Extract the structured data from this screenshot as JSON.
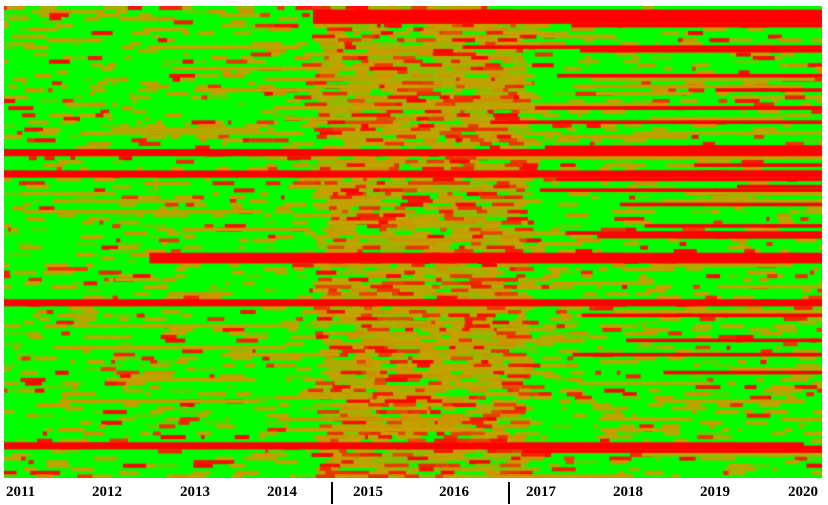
{
  "chart_data": {
    "type": "heatmap",
    "title": "",
    "xlabel": "",
    "ylabel": "",
    "x_tick_labels": [
      "2011",
      "2012",
      "2013",
      "2014",
      "2015",
      "2016",
      "2017",
      "2018",
      "2019",
      "2020"
    ],
    "xlim": [
      2011,
      2020
    ],
    "vertical_markers": [
      2014.6,
      2016.6
    ],
    "color_scale": {
      "low": "#00ff00",
      "mid": "#c8a000",
      "high": "#ff0000"
    },
    "rows": 132,
    "red_bands": [
      {
        "row_from": 1,
        "row_to": 4,
        "start": 2014.4,
        "end": 2020.0
      },
      {
        "row_from": 40,
        "row_to": 41,
        "start": 2011.0,
        "end": 2020.0
      },
      {
        "row_from": 46,
        "row_to": 47,
        "start": 2011.0,
        "end": 2020.0
      },
      {
        "row_from": 69,
        "row_to": 71,
        "start": 2012.6,
        "end": 2020.0
      },
      {
        "row_from": 82,
        "row_to": 83,
        "start": 2011.0,
        "end": 2020.0
      },
      {
        "row_from": 122,
        "row_to": 123,
        "start": 2011.0,
        "end": 2019.8
      }
    ],
    "hot_period": [
      2014.6,
      2016.6
    ],
    "grid": false,
    "legend": "none"
  }
}
